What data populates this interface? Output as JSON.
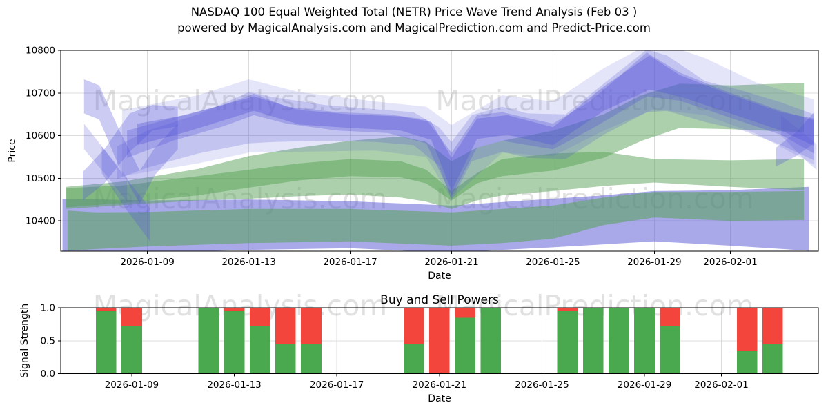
{
  "header": {
    "line1": "NASDAQ 100 Equal Weighted Total (NETR) Price Wave Trend Analysis (Feb 03 )",
    "line2": "powered by MagicalAnalysis.com and MagicalPrediction.com and Predict-Price.com"
  },
  "watermarks": {
    "left": "MagicalAnalysis.com",
    "right": "MagicalPrediction.com"
  },
  "chart_data": [
    {
      "type": "area",
      "name": "price-wave-trend",
      "ylabel": "Price",
      "xlabel": "Date",
      "ylim": [
        10329,
        10800
      ],
      "yticks": [
        {
          "v": 10400,
          "label": "10400"
        },
        {
          "v": 10500,
          "label": "10500"
        },
        {
          "v": 10600,
          "label": "10600"
        },
        {
          "v": 10700,
          "label": "10700"
        },
        {
          "v": 10800,
          "label": "10800"
        }
      ],
      "xlim_days": [
        -0.42,
        29.47
      ],
      "xticks": [
        {
          "day": 3,
          "label": "2026-01-09"
        },
        {
          "day": 7,
          "label": "2026-01-13"
        },
        {
          "day": 11,
          "label": "2026-01-17"
        },
        {
          "day": 15,
          "label": "2026-01-21"
        },
        {
          "day": 19,
          "label": "2026-01-25"
        },
        {
          "day": 23,
          "label": "2026-01-29"
        },
        {
          "day": 26,
          "label": "2026-02-01"
        }
      ],
      "grid": true,
      "palette": {
        "green": "#57a257",
        "blue": "#5353d6"
      },
      "bands": [
        {
          "color": "blue",
          "alpha": 0.5,
          "points": [
            [
              -0.35,
              10318,
              10452
            ],
            [
              3,
              10325,
              10448
            ],
            [
              7,
              10332,
              10450
            ],
            [
              11,
              10336,
              10446
            ],
            [
              15,
              10325,
              10436
            ],
            [
              17,
              10332,
              10444
            ],
            [
              19,
              10338,
              10452
            ],
            [
              21,
              10345,
              10460
            ],
            [
              23,
              10352,
              10470
            ],
            [
              26,
              10342,
              10472
            ],
            [
              29.1,
              10330,
              10480
            ]
          ]
        },
        {
          "color": "green",
          "alpha": 0.55,
          "points": [
            [
              -0.15,
              10330,
              10424
            ],
            [
              1,
              10334,
              10420
            ],
            [
              3,
              10340,
              10421
            ],
            [
              7,
              10348,
              10428
            ],
            [
              11,
              10352,
              10428
            ],
            [
              15,
              10342,
              10420
            ],
            [
              17,
              10348,
              10428
            ],
            [
              19,
              10358,
              10436
            ],
            [
              21,
              10390,
              10455
            ],
            [
              23,
              10408,
              10468
            ],
            [
              26,
              10400,
              10468
            ],
            [
              28.9,
              10402,
              10470
            ]
          ]
        },
        {
          "color": "green",
          "alpha": 0.5,
          "points": [
            [
              -0.2,
              10428,
              10477
            ],
            [
              2,
              10437,
              10483
            ],
            [
              5,
              10448,
              10505
            ],
            [
              7,
              10452,
              10520
            ],
            [
              9,
              10458,
              10535
            ],
            [
              11,
              10462,
              10545
            ],
            [
              13,
              10455,
              10540
            ],
            [
              14,
              10445,
              10520
            ],
            [
              15,
              10428,
              10470
            ],
            [
              16,
              10448,
              10512
            ],
            [
              17,
              10460,
              10545
            ],
            [
              19,
              10470,
              10558
            ],
            [
              21,
              10482,
              10562
            ],
            [
              23,
              10490,
              10545
            ],
            [
              26,
              10480,
              10542
            ],
            [
              28.9,
              10472,
              10545
            ]
          ]
        },
        {
          "color": "green",
          "alpha": 0.5,
          "points": [
            [
              -0.2,
              10432,
              10480
            ],
            [
              2,
              10442,
              10492
            ],
            [
              5,
              10460,
              10522
            ],
            [
              7,
              10478,
              10552
            ],
            [
              9,
              10495,
              10572
            ],
            [
              11,
              10505,
              10588
            ],
            [
              13,
              10502,
              10598
            ],
            [
              14,
              10488,
              10585
            ],
            [
              15,
              10448,
              10540
            ],
            [
              16,
              10488,
              10572
            ],
            [
              17,
              10505,
              10588
            ],
            [
              19,
              10518,
              10612
            ],
            [
              21,
              10548,
              10650
            ],
            [
              22.5,
              10588,
              10695
            ],
            [
              24,
              10618,
              10722
            ],
            [
              26,
              10615,
              10718
            ],
            [
              28.9,
              10608,
              10724
            ]
          ]
        },
        {
          "color": "blue",
          "alpha": 0.15,
          "points": [
            [
              2,
              10505,
              10660
            ],
            [
              5,
              10535,
              10695
            ],
            [
              7,
              10560,
              10732
            ],
            [
              9,
              10562,
              10702
            ],
            [
              12,
              10565,
              10680
            ],
            [
              14,
              10550,
              10668
            ],
            [
              15,
              10452,
              10625
            ],
            [
              17,
              10560,
              10695
            ],
            [
              19,
              10552,
              10680
            ],
            [
              21,
              10612,
              10758
            ],
            [
              23,
              10662,
              10822
            ],
            [
              25,
              10648,
              10782
            ],
            [
              27,
              10605,
              10725
            ],
            [
              29.3,
              10532,
              10685
            ]
          ]
        },
        {
          "color": "blue",
          "alpha": 0.22,
          "points": [
            [
              1.8,
              10498,
              10575
            ],
            [
              3,
              10525,
              10612
            ],
            [
              5,
              10558,
              10650
            ],
            [
              7,
              10582,
              10702
            ],
            [
              8,
              10585,
              10690
            ],
            [
              10,
              10588,
              10672
            ],
            [
              12,
              10585,
              10662
            ],
            [
              13.5,
              10578,
              10655
            ],
            [
              14.5,
              10530,
              10620
            ],
            [
              15,
              10448,
              10585
            ],
            [
              15.8,
              10540,
              10648
            ],
            [
              17,
              10562,
              10668
            ],
            [
              18,
              10548,
              10652
            ],
            [
              19.5,
              10545,
              10650
            ],
            [
              21,
              10602,
              10722
            ],
            [
              22.7,
              10655,
              10802
            ],
            [
              23.5,
              10658,
              10788
            ],
            [
              25,
              10632,
              10728
            ],
            [
              26.5,
              10612,
              10705
            ],
            [
              28,
              10578,
              10678
            ],
            [
              29.3,
              10542,
              10650
            ]
          ]
        },
        {
          "color": "blue",
          "alpha": 0.3,
          "points": [
            [
              2.2,
              10548,
              10612
            ],
            [
              4,
              10588,
              10642
            ],
            [
              6,
              10622,
              10672
            ],
            [
              7.2,
              10648,
              10698
            ],
            [
              8.5,
              10628,
              10668
            ],
            [
              10.5,
              10612,
              10655
            ],
            [
              12.5,
              10606,
              10650
            ],
            [
              14,
              10582,
              10638
            ],
            [
              15,
              10458,
              10560
            ],
            [
              16,
              10572,
              10648
            ],
            [
              17,
              10588,
              10655
            ],
            [
              19,
              10568,
              10628
            ],
            [
              20.5,
              10615,
              10682
            ],
            [
              22.7,
              10692,
              10795
            ],
            [
              24,
              10682,
              10748
            ],
            [
              26,
              10642,
              10700
            ],
            [
              28,
              10602,
              10658
            ],
            [
              29.3,
              10558,
              10636
            ]
          ]
        },
        {
          "color": "blue",
          "alpha": 0.35,
          "points": [
            [
              2.6,
              10578,
              10628
            ],
            [
              4.5,
              10608,
              10648
            ],
            [
              7.2,
              10658,
              10692
            ],
            [
              9,
              10626,
              10660
            ],
            [
              11,
              10618,
              10650
            ],
            [
              13,
              10612,
              10645
            ],
            [
              14.2,
              10590,
              10632
            ],
            [
              15,
              10470,
              10548
            ],
            [
              16,
              10592,
              10640
            ],
            [
              17.2,
              10602,
              10648
            ],
            [
              19,
              10578,
              10620
            ],
            [
              21,
              10658,
              10715
            ],
            [
              22.8,
              10708,
              10788
            ],
            [
              24,
              10692,
              10742
            ],
            [
              26,
              10652,
              10696
            ],
            [
              28,
              10612,
              10655
            ],
            [
              29.3,
              10576,
              10640
            ]
          ]
        },
        {
          "color": "blue",
          "alpha": 0.3,
          "points": [
            [
              0.5,
              10652,
              10732
            ],
            [
              1.1,
              10638,
              10718
            ],
            [
              1.9,
              10525,
              10612
            ],
            [
              2.7,
              10440,
              10518
            ],
            [
              3.3,
              10508,
              10572
            ],
            [
              4.2,
              10568,
              10628
            ]
          ]
        },
        {
          "color": "blue",
          "alpha": 0.3,
          "points": [
            [
              0.45,
              10448,
              10515
            ],
            [
              1.3,
              10488,
              10568
            ],
            [
              2.3,
              10562,
              10652
            ],
            [
              3.2,
              10612,
              10672
            ],
            [
              4.2,
              10622,
              10668
            ]
          ]
        },
        {
          "color": "blue",
          "alpha": 0.28,
          "points": [
            [
              1.2,
              10512,
              10575
            ],
            [
              2.1,
              10432,
              10505
            ],
            [
              3.1,
              10352,
              10430
            ]
          ]
        },
        {
          "color": "blue",
          "alpha": 0.22,
          "points": [
            [
              0.5,
              10568,
              10628
            ],
            [
              1.4,
              10505,
              10560
            ],
            [
              2.2,
              10445,
              10502
            ]
          ]
        },
        {
          "color": "blue",
          "alpha": 0.3,
          "points": [
            [
              27.8,
              10528,
              10572
            ],
            [
              28.6,
              10552,
              10608
            ],
            [
              29.3,
              10582,
              10655
            ]
          ]
        },
        {
          "color": "blue",
          "alpha": 0.2,
          "points": [
            [
              28,
              10600,
              10648
            ],
            [
              29,
              10540,
              10600
            ],
            [
              29.4,
              10520,
              10580
            ]
          ]
        }
      ]
    },
    {
      "type": "stacked-bar",
      "name": "buy-sell-powers",
      "title": "Buy and Sell Powers",
      "ylabel": "Signal Strength",
      "xlabel": "Date",
      "ylim": [
        0,
        1
      ],
      "yticks": [
        {
          "v": 0,
          "label": "0.0"
        },
        {
          "v": 0.5,
          "label": "0.5"
        },
        {
          "v": 1,
          "label": "1.0"
        }
      ],
      "xlim_days": [
        0.23,
        29.78
      ],
      "xticks": [
        {
          "day": 3,
          "label": "2026-01-09"
        },
        {
          "day": 7,
          "label": "2026-01-13"
        },
        {
          "day": 11,
          "label": "2026-01-17"
        },
        {
          "day": 15,
          "label": "2026-01-21"
        },
        {
          "day": 19,
          "label": "2026-01-25"
        },
        {
          "day": 23,
          "label": "2026-01-29"
        },
        {
          "day": 26,
          "label": "2026-02-01"
        }
      ],
      "bar_width_days": 0.8,
      "palette": {
        "buy": "#4aa84e",
        "sell": "#f4453d"
      },
      "bars": [
        {
          "date": "2026-01-08",
          "day": 2,
          "buy": 0.95,
          "sell": 0.05
        },
        {
          "date": "2026-01-09",
          "day": 3,
          "buy": 0.73,
          "sell": 0.27
        },
        {
          "date": "2026-01-12",
          "day": 6,
          "buy": 1.0,
          "sell": 0.0
        },
        {
          "date": "2026-01-13",
          "day": 7,
          "buy": 0.95,
          "sell": 0.05
        },
        {
          "date": "2026-01-14",
          "day": 8,
          "buy": 0.73,
          "sell": 0.27
        },
        {
          "date": "2026-01-15",
          "day": 9,
          "buy": 0.45,
          "sell": 0.55
        },
        {
          "date": "2026-01-16",
          "day": 10,
          "buy": 0.45,
          "sell": 0.55
        },
        {
          "date": "2026-01-20",
          "day": 14,
          "buy": 0.45,
          "sell": 0.55
        },
        {
          "date": "2026-01-21",
          "day": 15,
          "buy": 0.0,
          "sell": 1.0
        },
        {
          "date": "2026-01-22",
          "day": 16,
          "buy": 0.85,
          "sell": 0.15
        },
        {
          "date": "2026-01-23",
          "day": 17,
          "buy": 1.0,
          "sell": 0.0
        },
        {
          "date": "2026-01-26",
          "day": 20,
          "buy": 0.96,
          "sell": 0.04
        },
        {
          "date": "2026-01-27",
          "day": 21,
          "buy": 1.0,
          "sell": 0.0
        },
        {
          "date": "2026-01-28",
          "day": 22,
          "buy": 1.0,
          "sell": 0.0
        },
        {
          "date": "2026-01-29",
          "day": 23,
          "buy": 1.0,
          "sell": 0.0
        },
        {
          "date": "2026-01-30",
          "day": 24,
          "buy": 0.72,
          "sell": 0.28
        },
        {
          "date": "2026-02-02",
          "day": 27,
          "buy": 0.34,
          "sell": 0.66
        },
        {
          "date": "2026-02-03",
          "day": 28,
          "buy": 0.45,
          "sell": 0.55
        }
      ]
    }
  ]
}
